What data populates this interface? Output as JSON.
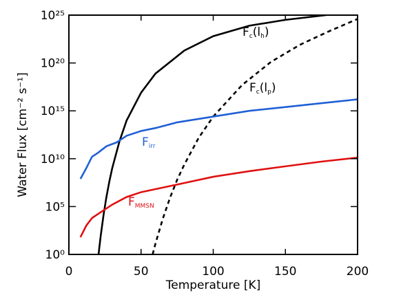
{
  "chart_data": {
    "type": "line",
    "xlabel": "Temperature [K]",
    "ylabel": "Water Flux [cm⁻² s⁻¹]",
    "xlim": [
      0,
      200
    ],
    "xticks": [
      0,
      50,
      100,
      150,
      200
    ],
    "ylim": [
      1,
      1e+25
    ],
    "ylog": true,
    "yticks": [
      {
        "value": 1,
        "label": "10⁰"
      },
      {
        "value": 100000.0,
        "label": "10⁵"
      },
      {
        "value": 10000000000.0,
        "label": "10¹⁰"
      },
      {
        "value": 1000000000000000.0,
        "label": "10¹⁵"
      },
      {
        "value": 1e+20,
        "label": "10²⁰"
      },
      {
        "value": 1e+25,
        "label": "10²⁵"
      }
    ],
    "series": [
      {
        "label": [
          "F",
          "c",
          "(l",
          "h",
          ")"
        ],
        "color": "#000000",
        "dash": false,
        "x": [
          20.6,
          21,
          22,
          24,
          26,
          28,
          30,
          35,
          40,
          50,
          60,
          80,
          100,
          125,
          150,
          178
        ],
        "values": [
          1.15,
          4,
          79,
          13000,
          1000000,
          40000000,
          1000000000,
          630000000000.0,
          100000000000000.0,
          7.9e+16,
          7.9e+18,
          2e+21,
          6.3e+22,
          7.9e+23,
          3.2e+24,
          1e+25
        ]
      },
      {
        "label": [
          "F",
          "c",
          "(l",
          "p",
          ")"
        ],
        "color": "#000000",
        "dash": true,
        "x": [
          58,
          60,
          65,
          70,
          75,
          80,
          90,
          100,
          120,
          140,
          160,
          180,
          200
        ],
        "values": [
          1,
          14,
          5000,
          790000,
          63000000,
          2500000000,
          1600000000000.0,
          250000000000000.0,
          5e+17,
          1.3e+20,
          7.9e+21,
          2e+23,
          4e+24
        ]
      },
      {
        "label": [
          "F",
          "irr"
        ],
        "color": "#1f5fd6",
        "dash": false,
        "x": [
          8,
          12,
          16,
          20,
          26,
          33,
          40,
          50,
          60,
          75,
          100,
          125,
          150,
          175,
          200
        ],
        "values": [
          79000000,
          1000000000,
          16000000000,
          40000000000,
          200000000000.0,
          500000000000.0,
          2500000000000.0,
          7900000000000.0,
          16000000000000.0,
          63000000000000.0,
          250000000000000.0,
          1000000000000000.0,
          2500000000000000.0,
          6300000000000000.0,
          1.6e+16
        ]
      },
      {
        "label": [
          "F",
          "MMSN"
        ],
        "color": "#e01010",
        "dash": false,
        "x": [
          8,
          12,
          16,
          20,
          30,
          40,
          50,
          75,
          100,
          125,
          150,
          175,
          200
        ],
        "values": [
          63,
          1000,
          6300,
          16000,
          160000,
          1000000,
          3200000,
          20000000,
          130000000,
          500000000,
          1600000000,
          5000000000,
          13000000000
        ]
      }
    ]
  }
}
